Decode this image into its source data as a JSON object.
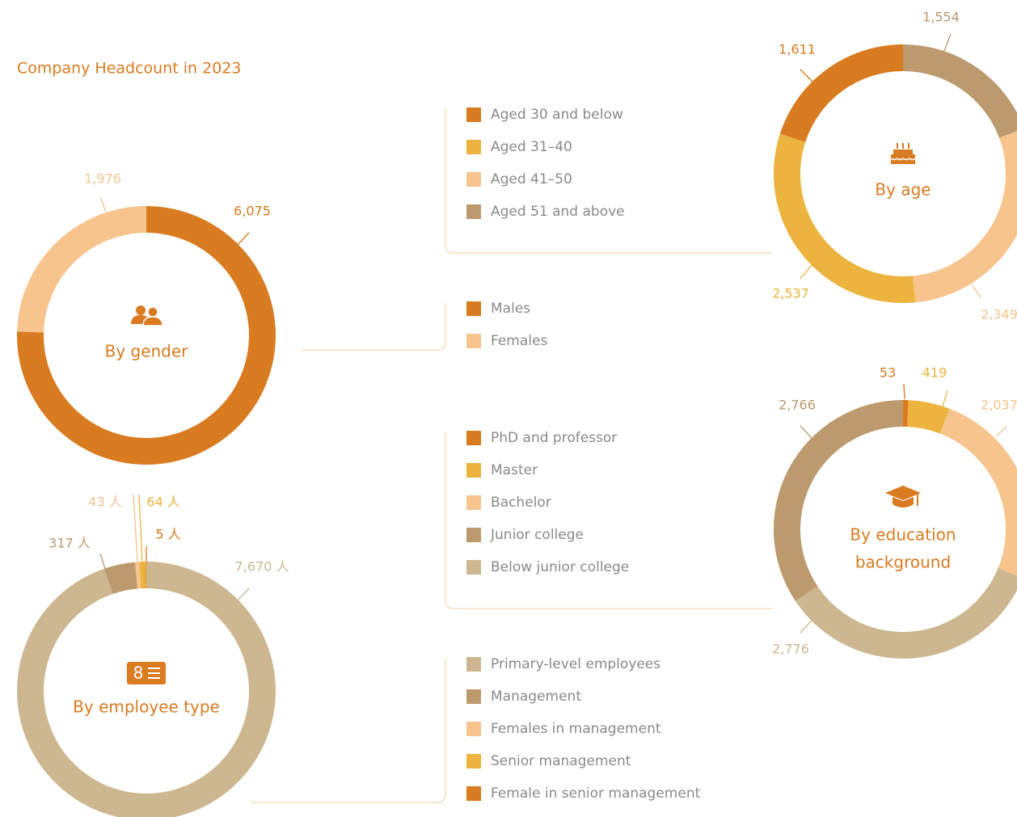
{
  "title": "Company Headcount in 2023",
  "chart_data": [
    {
      "type": "donut",
      "center_label": [
        "By gender"
      ],
      "categories": [
        "Males",
        "Females"
      ],
      "values": [
        6075,
        1976
      ],
      "value_labels": [
        "6,075",
        "1,976"
      ],
      "colors": [
        "#d97b20",
        "#f7c48e"
      ]
    },
    {
      "type": "donut",
      "center_label": [
        "By age"
      ],
      "categories": [
        "Aged 30 and below",
        "Aged 31–40",
        "Aged 41–50",
        "Aged 51 and above"
      ],
      "values": [
        1611,
        2537,
        2349,
        1554
      ],
      "value_labels": [
        "1,611",
        "2,537",
        "2,349",
        "1,554"
      ],
      "colors": [
        "#d97b20",
        "#ecb43f",
        "#f7c48e",
        "#bc9a6e"
      ]
    },
    {
      "type": "donut",
      "center_label": [
        "By education",
        "background"
      ],
      "categories": [
        "PhD and professor",
        "Master",
        "Bachelor",
        "Junior college",
        "Below junior college"
      ],
      "values": [
        53,
        419,
        2037,
        2766,
        2776
      ],
      "value_labels": [
        "53",
        "419",
        "2,037",
        "2,766",
        "2,776"
      ],
      "colors": [
        "#d97b20",
        "#ecb43f",
        "#f7c48e",
        "#bc9a6e",
        "#cdb790"
      ]
    },
    {
      "type": "donut",
      "center_label": [
        "By employee type"
      ],
      "categories": [
        "Primary-level employees",
        "Management",
        "Females in management",
        "Senior management",
        "Female in senior management"
      ],
      "values": [
        7670,
        317,
        43,
        64,
        5
      ],
      "value_labels": [
        "7,670 人",
        "317 人",
        "43 人",
        "64 人",
        "5 人"
      ],
      "colors": [
        "#cdb790",
        "#bc9a6e",
        "#f7c48e",
        "#ecb43f",
        "#d97b20"
      ]
    }
  ]
}
